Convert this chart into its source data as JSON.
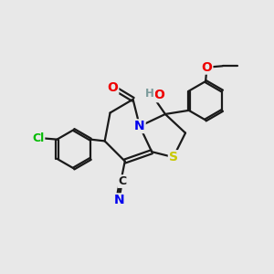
{
  "background_color": "#e8e8e8",
  "bond_color": "#1a1a1a",
  "bond_lw": 1.6,
  "dbo": 0.06,
  "atom_colors": {
    "C": "#1a1a1a",
    "N": "#0000ee",
    "O": "#ee0000",
    "S": "#c8c800",
    "Cl": "#00bb00",
    "H": "#7a9a9a"
  },
  "fs": 9.0,
  "figsize": [
    3.0,
    3.0
  ],
  "dpi": 100,
  "xlim": [
    0,
    10
  ],
  "ylim": [
    0,
    10
  ]
}
